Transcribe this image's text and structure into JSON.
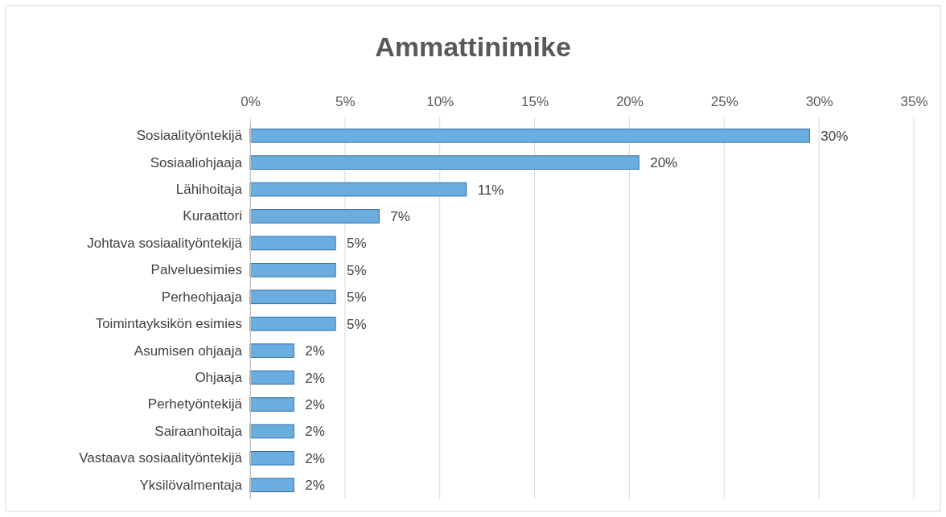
{
  "chart_data": {
    "type": "bar",
    "orientation": "horizontal",
    "title": "Ammattinimike",
    "categories": [
      "Sosiaalityöntekijä",
      "Sosiaaliohjaaja",
      "Lähihoitaja",
      "Kuraattori",
      "Johtava sosiaalityöntekijä",
      "Palveluesimies",
      "Perheohjaaja",
      "Toimintayksikön esimies",
      "Asumisen ohjaaja",
      "Ohjaaja",
      "Perhetyöntekijä",
      "Sairaanhoitaja",
      "Vastaava sosiaalityöntekijä",
      "Yksilövalmentaja"
    ],
    "values": [
      29.5,
      20.5,
      11.4,
      6.8,
      4.5,
      4.5,
      4.5,
      4.5,
      2.3,
      2.3,
      2.3,
      2.3,
      2.3,
      2.3
    ],
    "value_labels": [
      "30%",
      "20%",
      "11%",
      "7%",
      "5%",
      "5%",
      "5%",
      "5%",
      "2%",
      "2%",
      "2%",
      "2%",
      "2%",
      "2%"
    ],
    "color": "#6aaee0",
    "xlim": [
      0,
      35
    ],
    "xticks": [
      {
        "value": 0,
        "label": "0%"
      },
      {
        "value": 5,
        "label": "5%"
      },
      {
        "value": 10,
        "label": "10%"
      },
      {
        "value": 15,
        "label": "15%"
      },
      {
        "value": 20,
        "label": "20%"
      },
      {
        "value": 25,
        "label": "25%"
      },
      {
        "value": 30,
        "label": "30%"
      },
      {
        "value": 35,
        "label": "35%"
      }
    ],
    "grid": "x"
  }
}
